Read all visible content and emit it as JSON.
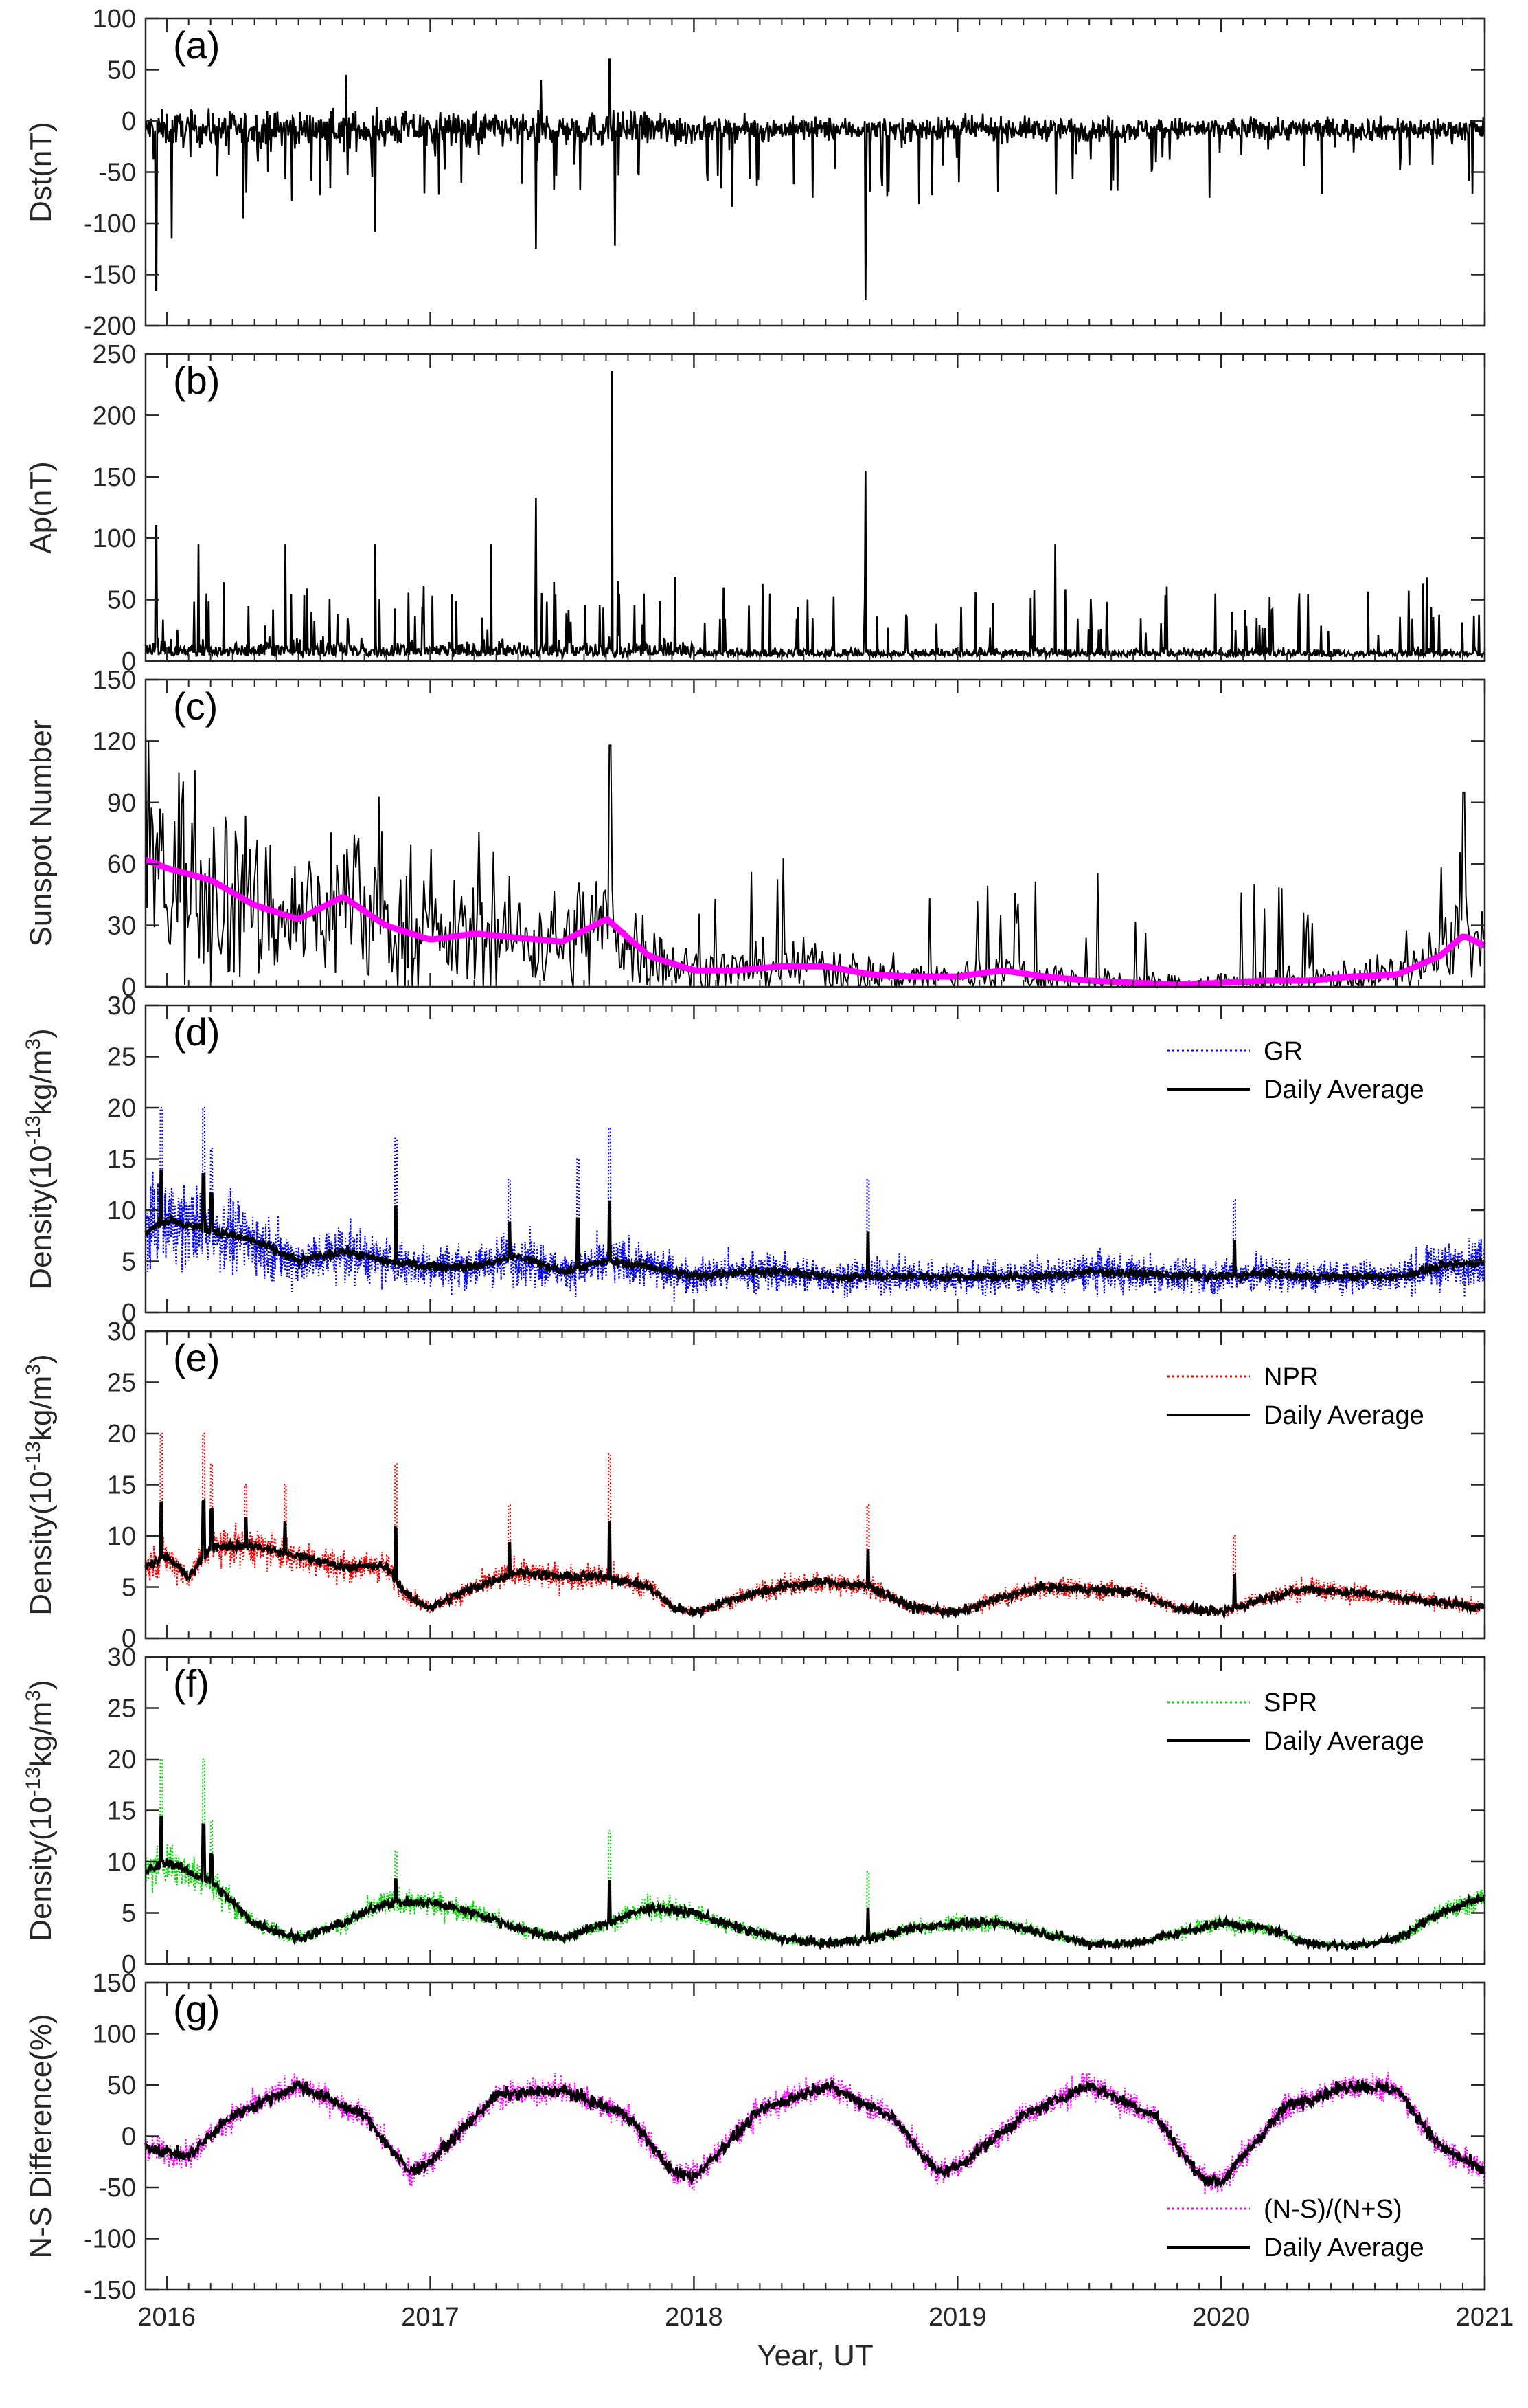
{
  "figure": {
    "xlabel": "Year, UT",
    "x_ticks": [
      "2016",
      "2017",
      "2018",
      "2019",
      "2020",
      "2021"
    ],
    "xlim": [
      2015.92,
      2021.0
    ]
  },
  "chart_data": [
    {
      "id": "a",
      "type": "line",
      "tag": "(a)",
      "ylabel": "Dst(nT)",
      "ylim": [
        -200,
        100
      ],
      "y_ticks": [
        100,
        50,
        0,
        -50,
        -100,
        -150,
        -200
      ],
      "series": [
        {
          "name": "Dst",
          "color": "#000000",
          "style": "solid"
        }
      ],
      "events": [
        [
          2015.96,
          -165
        ],
        [
          2016.02,
          -115
        ],
        [
          2016.29,
          -95
        ],
        [
          2016.79,
          -108
        ],
        [
          2017.4,
          -125
        ],
        [
          2017.7,
          -122
        ],
        [
          2018.65,
          -175
        ],
        [
          2017.42,
          40
        ],
        [
          2017.68,
          60
        ],
        [
          2016.68,
          45
        ]
      ],
      "baseline": -8,
      "noise": 14
    },
    {
      "id": "b",
      "type": "line",
      "tag": "(b)",
      "ylabel": "Ap(nT)",
      "ylim": [
        0,
        250
      ],
      "y_ticks": [
        250,
        200,
        150,
        100,
        50,
        0
      ],
      "series": [
        {
          "name": "Ap",
          "color": "#000000",
          "style": "solid"
        }
      ],
      "events": [
        [
          2015.96,
          110
        ],
        [
          2016.12,
          95
        ],
        [
          2016.45,
          95
        ],
        [
          2016.79,
          95
        ],
        [
          2017.23,
          95
        ],
        [
          2017.4,
          133
        ],
        [
          2017.69,
          236
        ],
        [
          2018.65,
          155
        ],
        [
          2019.37,
          95
        ],
        [
          2020.78,
          68
        ]
      ]
    },
    {
      "id": "c",
      "type": "line",
      "tag": "(c)",
      "ylabel": "Sunspot Number",
      "ylim": [
        0,
        150
      ],
      "y_ticks": [
        150,
        120,
        90,
        60,
        30,
        0
      ],
      "series": [
        {
          "name": "Daily sunspot number",
          "color": "#000000",
          "style": "solid"
        },
        {
          "name": "Smoothed sunspot number",
          "color": "#ff00ff",
          "style": "thick",
          "x": [
            2015.92,
            2016.0,
            2016.17,
            2016.33,
            2016.5,
            2016.67,
            2016.83,
            2017.0,
            2017.17,
            2017.33,
            2017.5,
            2017.67,
            2017.83,
            2018.0,
            2018.17,
            2018.33,
            2018.5,
            2018.67,
            2018.83,
            2019.0,
            2019.17,
            2019.33,
            2019.5,
            2019.67,
            2019.83,
            2020.0,
            2020.17,
            2020.33,
            2020.5,
            2020.67,
            2020.83,
            2020.92,
            2021.0
          ],
          "values": [
            62,
            58,
            52,
            40,
            33,
            44,
            30,
            23,
            26,
            24,
            22,
            33,
            15,
            8,
            8,
            10,
            10,
            6,
            5,
            5,
            8,
            5,
            3,
            2,
            1,
            2,
            3,
            3,
            5,
            6,
            15,
            25,
            20
          ]
        }
      ]
    },
    {
      "id": "d",
      "type": "line",
      "tag": "(d)",
      "ylabel": "Density(10-13kg/m3)",
      "ylim": [
        0,
        30
      ],
      "y_ticks": [
        30,
        25,
        20,
        15,
        10,
        5,
        0
      ],
      "legend": [
        "GR",
        "Daily Average"
      ],
      "legend_position": "top-right",
      "series": [
        {
          "name": "GR",
          "color": "#0000ff",
          "style": "dotted"
        },
        {
          "name": "Daily Average",
          "color": "#000000",
          "style": "solid",
          "x": [
            2015.92,
            2016.0,
            2016.17,
            2016.33,
            2016.5,
            2016.67,
            2016.83,
            2017.0,
            2017.17,
            2017.33,
            2017.5,
            2017.67,
            2017.83,
            2018.0,
            2018.17,
            2018.33,
            2018.5,
            2018.67,
            2018.83,
            2019.0,
            2019.17,
            2019.33,
            2019.5,
            2019.67,
            2019.83,
            2020.0,
            2020.17,
            2020.33,
            2020.5,
            2020.67,
            2020.83,
            2021.0
          ],
          "values": [
            8,
            9,
            8,
            7,
            5,
            6,
            5,
            4.5,
            4.5,
            5.5,
            4,
            5,
            4.5,
            3.5,
            4,
            4,
            3.5,
            3.5,
            3.5,
            3.5,
            3.5,
            3.5,
            4,
            3.8,
            3.6,
            3.5,
            3.8,
            3.5,
            3.5,
            3.5,
            4.5,
            5
          ]
        }
      ],
      "spikes": [
        [
          2015.98,
          20
        ],
        [
          2016.14,
          20
        ],
        [
          2016.17,
          16
        ],
        [
          2016.87,
          17
        ],
        [
          2017.3,
          13
        ],
        [
          2017.68,
          18
        ],
        [
          2017.56,
          15
        ],
        [
          2018.66,
          13
        ],
        [
          2020.05,
          11
        ]
      ]
    },
    {
      "id": "e",
      "type": "line",
      "tag": "(e)",
      "ylabel": "Density(10-13kg/m3)",
      "ylim": [
        0,
        30
      ],
      "y_ticks": [
        30,
        25,
        20,
        15,
        10,
        5,
        0
      ],
      "legend": [
        "NPR",
        "Daily Average"
      ],
      "legend_position": "top-right",
      "series": [
        {
          "name": "NPR",
          "color": "#ff0000",
          "style": "dotted"
        },
        {
          "name": "Daily Average",
          "color": "#000000",
          "style": "solid",
          "x": [
            2015.92,
            2016.0,
            2016.08,
            2016.17,
            2016.33,
            2016.5,
            2016.67,
            2016.83,
            2016.92,
            2017.0,
            2017.17,
            2017.33,
            2017.5,
            2017.67,
            2017.83,
            2017.92,
            2018.0,
            2018.17,
            2018.33,
            2018.5,
            2018.67,
            2018.83,
            2019.0,
            2019.17,
            2019.33,
            2019.5,
            2019.67,
            2019.83,
            2020.0,
            2020.17,
            2020.33,
            2020.5,
            2020.67,
            2020.83,
            2021.0
          ],
          "values": [
            7,
            8,
            6,
            9,
            9,
            8,
            7,
            7,
            4,
            3,
            5,
            6.5,
            6,
            6,
            5,
            3,
            2.5,
            4,
            5,
            5.5,
            5,
            3,
            2.5,
            4,
            5,
            4.8,
            4.5,
            3,
            2.5,
            4,
            4.8,
            4.5,
            4,
            3.5,
            3
          ]
        }
      ],
      "spikes": [
        [
          2015.98,
          20
        ],
        [
          2016.14,
          20
        ],
        [
          2016.17,
          17
        ],
        [
          2016.3,
          15
        ],
        [
          2016.45,
          15
        ],
        [
          2016.87,
          17
        ],
        [
          2017.3,
          13
        ],
        [
          2017.68,
          18
        ],
        [
          2018.66,
          13
        ],
        [
          2020.05,
          10
        ]
      ]
    },
    {
      "id": "f",
      "type": "line",
      "tag": "(f)",
      "ylabel": "Density(10-13kg/m3)",
      "ylim": [
        0,
        30
      ],
      "y_ticks": [
        30,
        25,
        20,
        15,
        10,
        5,
        0
      ],
      "legend": [
        "SPR",
        "Daily Average"
      ],
      "legend_position": "top-right",
      "series": [
        {
          "name": "SPR",
          "color": "#00dd00",
          "style": "dotted"
        },
        {
          "name": "Daily Average",
          "color": "#000000",
          "style": "solid",
          "x": [
            2015.92,
            2016.0,
            2016.17,
            2016.33,
            2016.5,
            2016.67,
            2016.83,
            2017.0,
            2017.17,
            2017.33,
            2017.5,
            2017.67,
            2017.83,
            2018.0,
            2018.17,
            2018.33,
            2018.5,
            2018.67,
            2018.83,
            2019.0,
            2019.17,
            2019.33,
            2019.5,
            2019.67,
            2019.83,
            2020.0,
            2020.17,
            2020.33,
            2020.5,
            2020.67,
            2020.83,
            2021.0
          ],
          "values": [
            9,
            10,
            8,
            4,
            2.5,
            4,
            6,
            6,
            5,
            3.5,
            2.5,
            4,
            5.5,
            5,
            3.5,
            2.5,
            2,
            2.5,
            3.5,
            4,
            4,
            3,
            2,
            2,
            3,
            4,
            3.5,
            2,
            1.8,
            2.5,
            5,
            6.5
          ]
        }
      ],
      "spikes": [
        [
          2015.98,
          20
        ],
        [
          2016.14,
          20
        ],
        [
          2016.17,
          14
        ],
        [
          2016.87,
          11
        ],
        [
          2017.68,
          13
        ],
        [
          2018.66,
          9
        ]
      ]
    },
    {
      "id": "g",
      "type": "line",
      "tag": "(g)",
      "ylabel": "N-S Difference(%)",
      "ylim": [
        -150,
        150
      ],
      "y_ticks": [
        150,
        100,
        50,
        0,
        -50,
        -100,
        -150
      ],
      "legend": [
        "(N-S)/(N+S)",
        "Daily Average"
      ],
      "legend_position": "bottom-right",
      "series": [
        {
          "name": "(N-S)/(N+S)",
          "color": "#ff00ff",
          "style": "dotted"
        },
        {
          "name": "Daily Average",
          "color": "#000000",
          "style": "solid",
          "x": [
            2015.92,
            2016.0,
            2016.08,
            2016.25,
            2016.5,
            2016.75,
            2016.92,
            2017.0,
            2017.25,
            2017.5,
            2017.75,
            2017.92,
            2018.0,
            2018.25,
            2018.5,
            2018.75,
            2018.92,
            2019.0,
            2019.25,
            2019.5,
            2019.75,
            2019.92,
            2020.0,
            2020.25,
            2020.5,
            2020.67,
            2020.83,
            2021.0
          ],
          "values": [
            -10,
            -15,
            -20,
            20,
            50,
            20,
            -35,
            -25,
            40,
            45,
            20,
            -35,
            -40,
            25,
            50,
            20,
            -35,
            -30,
            20,
            50,
            20,
            -40,
            -45,
            30,
            50,
            45,
            -10,
            -35
          ]
        }
      ]
    }
  ]
}
